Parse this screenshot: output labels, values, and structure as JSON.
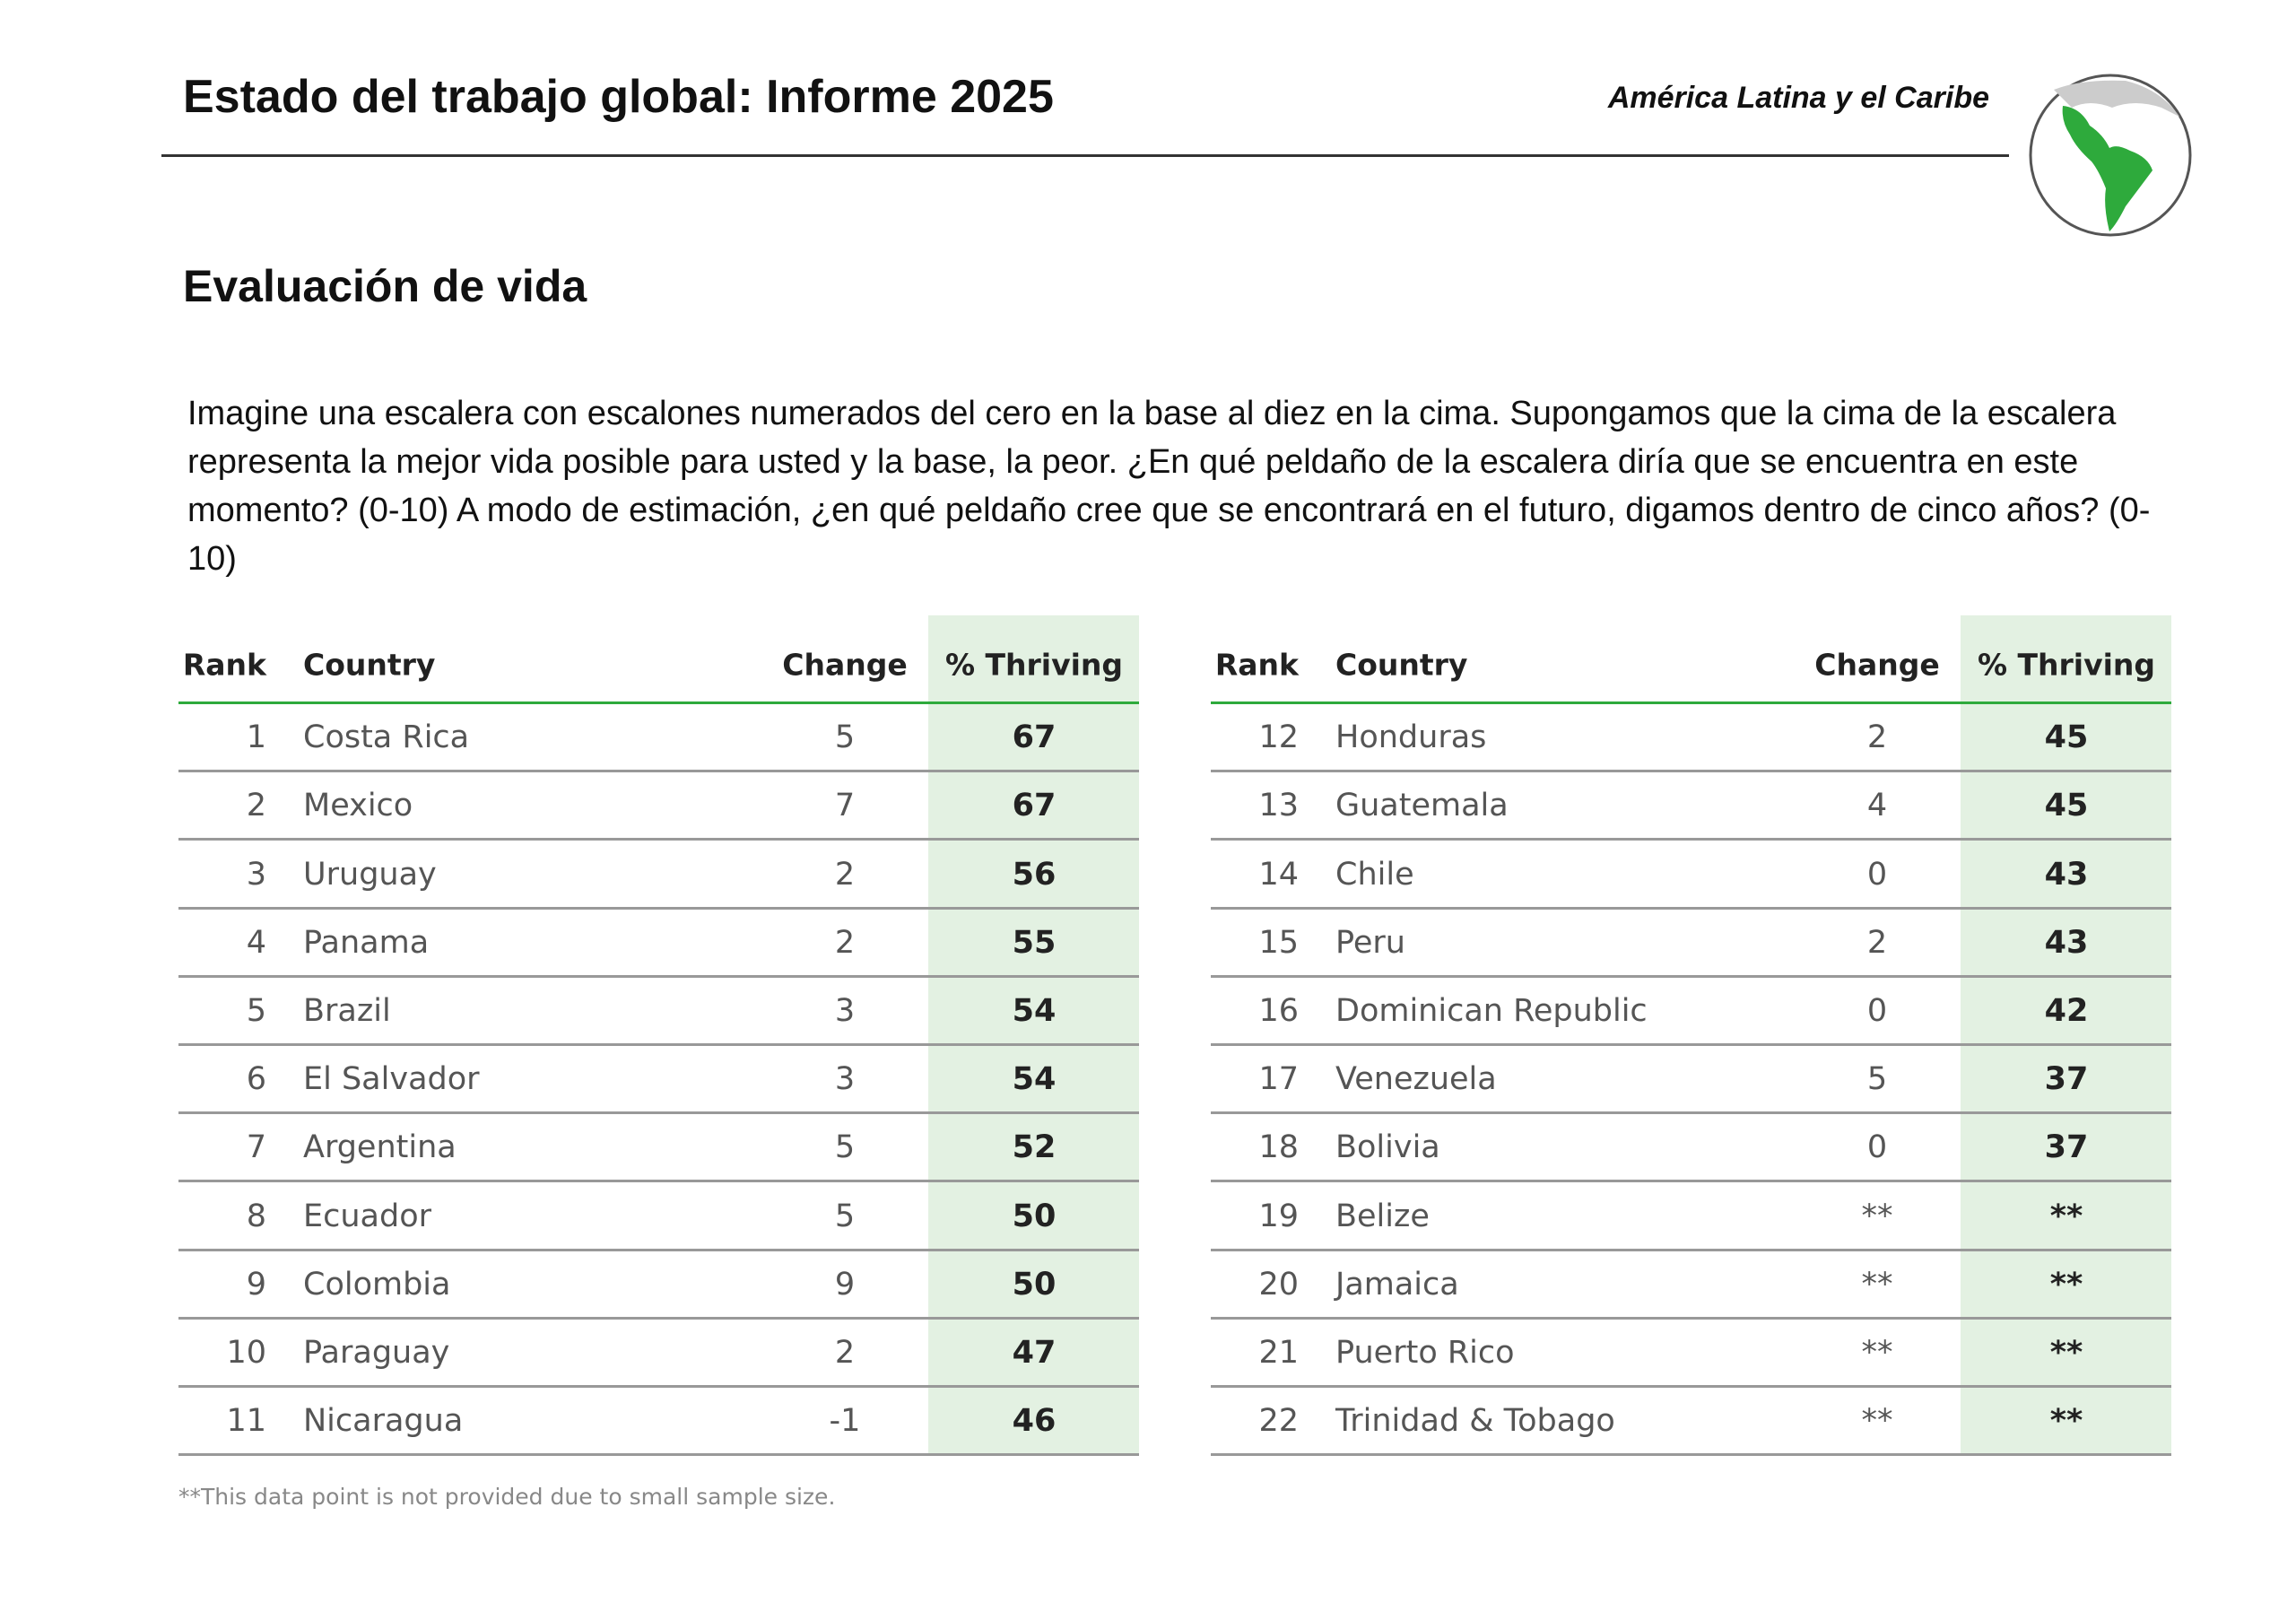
{
  "header": {
    "title": "Estado del trabajo global: Informe 2025",
    "region": "América Latina y el Caribe"
  },
  "section_title": "Evaluación de vida",
  "question": "Imagine una escalera con escalones numerados del cero en la base al diez en la cima. Supongamos que la cima de la escalera representa la mejor vida posible para usted y la base, la peor. ¿En qué peldaño de la escalera diría que se encuentra en este momento? (0-10) A modo de estimación, ¿en qué peldaño cree que se encontrará en el futuro, digamos dentro de cinco años? (0-10)",
  "tables": [
    {
      "columns": [
        "Rank",
        "Country",
        "Change",
        "% Thriving"
      ],
      "rows": [
        [
          1,
          "Costa Rica",
          5,
          67
        ],
        [
          2,
          "Mexico",
          7,
          67
        ],
        [
          3,
          "Uruguay",
          2,
          56
        ],
        [
          4,
          "Panama",
          2,
          55
        ],
        [
          5,
          "Brazil",
          3,
          54
        ],
        [
          6,
          "El Salvador",
          3,
          54
        ],
        [
          7,
          "Argentina",
          5,
          52
        ],
        [
          8,
          "Ecuador",
          5,
          50
        ],
        [
          9,
          "Colombia",
          9,
          50
        ],
        [
          10,
          "Paraguay",
          2,
          47
        ],
        [
          11,
          "Nicaragua",
          -1,
          46
        ]
      ]
    },
    {
      "columns": [
        "Rank",
        "Country",
        "Change",
        "% Thriving"
      ],
      "rows": [
        [
          12,
          "Honduras",
          2,
          45
        ],
        [
          13,
          "Guatemala",
          4,
          45
        ],
        [
          14,
          "Chile",
          0,
          43
        ],
        [
          15,
          "Peru",
          2,
          43
        ],
        [
          16,
          "Dominican Republic",
          0,
          42
        ],
        [
          17,
          "Venezuela",
          5,
          37
        ],
        [
          18,
          "Bolivia",
          0,
          37
        ],
        [
          19,
          "Belize",
          "**",
          "**"
        ],
        [
          20,
          "Jamaica",
          "**",
          "**"
        ],
        [
          21,
          "Puerto Rico",
          "**",
          "**"
        ],
        [
          22,
          "Trinidad & Tobago",
          "**",
          "**"
        ]
      ]
    }
  ],
  "footnote": "**This data point is not provided due to small sample size."
}
